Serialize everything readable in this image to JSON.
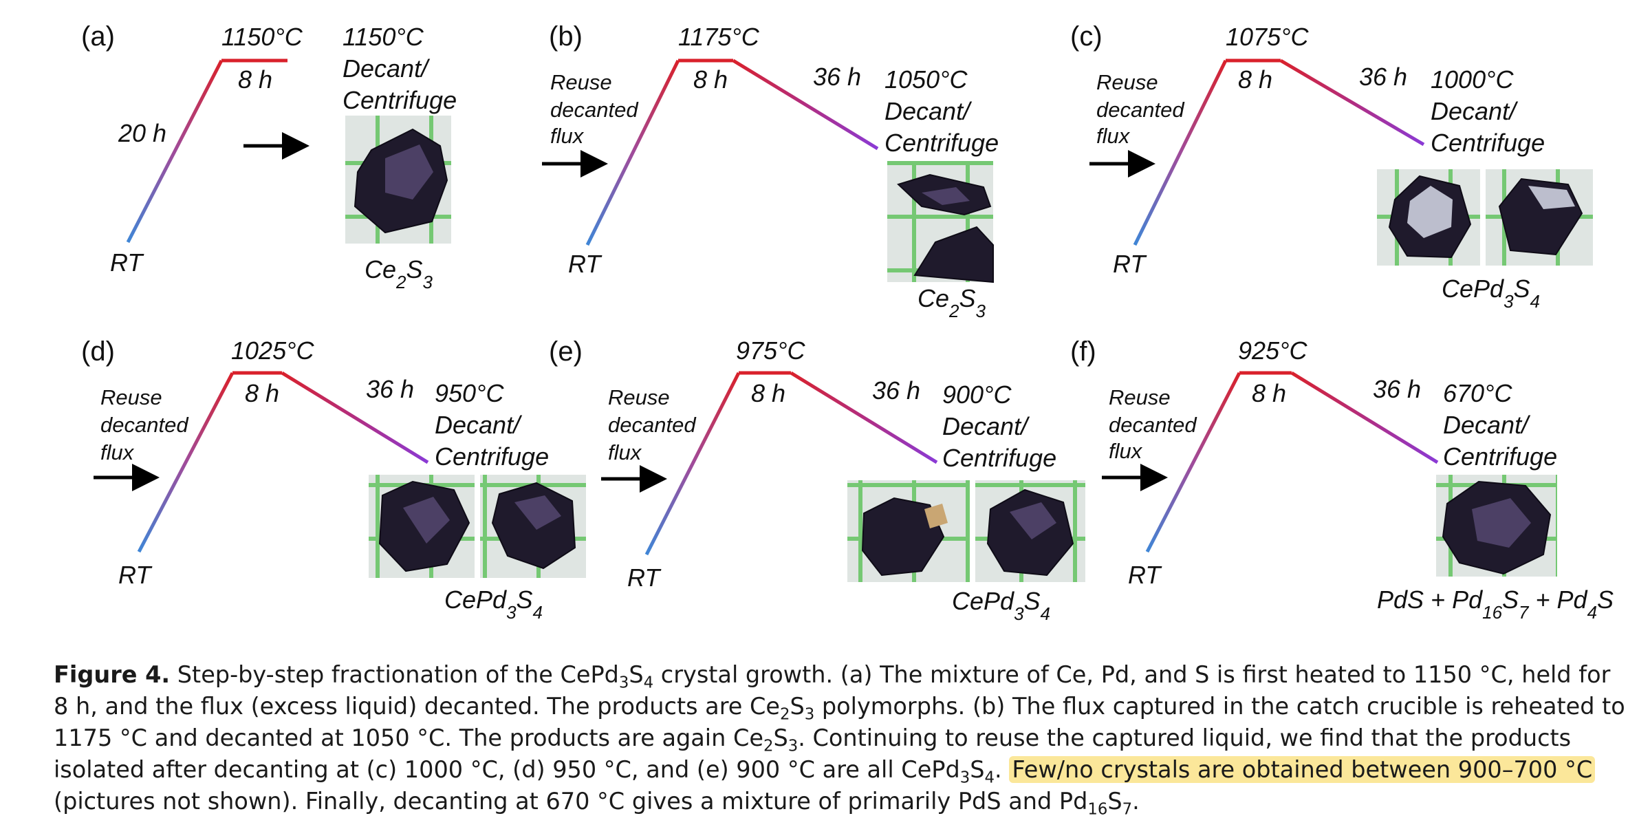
{
  "panels": [
    {
      "letter": "(a)",
      "rt": "RT",
      "ramp": "20 h",
      "peak": "1150°C",
      "hold": "8 h",
      "reuse": "",
      "cool": "",
      "decant_temp": "1150°C",
      "decant": "Decant/",
      "centrifuge": "Centrifuge",
      "product": "Ce2S3"
    },
    {
      "letter": "(b)",
      "rt": "RT",
      "ramp": "",
      "peak": "1175°C",
      "hold": "8 h",
      "reuse": [
        "Reuse",
        "decanted",
        "flux"
      ],
      "cool": "36 h",
      "decant_temp": "1050°C",
      "decant": "Decant/",
      "centrifuge": "Centrifuge",
      "product": "Ce2S3"
    },
    {
      "letter": "(c)",
      "rt": "RT",
      "ramp": "",
      "peak": "1075°C",
      "hold": "8 h",
      "reuse": [
        "Reuse",
        "decanted",
        "flux"
      ],
      "cool": "36 h",
      "decant_temp": "1000°C",
      "decant": "Decant/",
      "centrifuge": "Centrifuge",
      "product": "CePd3S4"
    },
    {
      "letter": "(d)",
      "rt": "RT",
      "ramp": "",
      "peak": "1025°C",
      "hold": "8 h",
      "reuse": [
        "Reuse",
        "decanted",
        "flux"
      ],
      "cool": "36 h",
      "decant_temp": "950°C",
      "decant": "Decant/",
      "centrifuge": "Centrifuge",
      "product": "CePd3S4"
    },
    {
      "letter": "(e)",
      "rt": "RT",
      "ramp": "",
      "peak": "975°C",
      "hold": "8 h",
      "reuse": [
        "Reuse",
        "decanted",
        "flux"
      ],
      "cool": "36 h",
      "decant_temp": "900°C",
      "decant": "Decant/",
      "centrifuge": "Centrifuge",
      "product": "CePd3S4"
    },
    {
      "letter": "(f)",
      "rt": "RT",
      "ramp": "",
      "peak": "925°C",
      "hold": "8 h",
      "reuse": [
        "Reuse",
        "decanted",
        "flux"
      ],
      "cool": "36 h",
      "decant_temp": "670°C",
      "decant": "Decant/",
      "centrifuge": "Centrifuge",
      "product": "PdS + Pd16S7 + Pd4S"
    }
  ],
  "colors": {
    "ramp_start": "#3f86d6",
    "ramp_end": "#d9212b",
    "hold": "#d9212b",
    "cool_end": "#8a3ad6",
    "highlight": "#fbe79a",
    "grid_green": "#63c35f"
  },
  "caption": {
    "label": "Figure 4.",
    "s1": " Step-by-step fractionation of the CePd",
    "s1b": "3",
    "s1c": "S",
    "s1d": "4",
    "s2": " crystal growth. (a) The mixture of Ce, Pd, and S is first heated to 1150 °C, held for 8 h, and the flux (excess liquid) decanted. The products are Ce",
    "s2b": "2",
    "s2c": "S",
    "s2d": "3",
    "s3": " polymorphs. (b) The flux captured in the catch crucible is reheated to 1175 °C and decanted at 1050 °C. The products are again Ce",
    "s3b": "2",
    "s3c": "S",
    "s3d": "3",
    "s4": ". Continuing to reuse the captured liquid, we find that the products isolated after decanting at (c) 1000 °C, (d) 950 °C, and (e) 900 °C are all CePd",
    "s4b": "3",
    "s4c": "S",
    "s4d": "4",
    "s4e": ". ",
    "highlight": "Few/no crystals are obtained between 900–700 °C",
    "s5": " (pictures not shown). Finally, decanting at 670 °C gives a mixture of primarily PdS and Pd",
    "s5b": "16",
    "s5c": "S",
    "s5d": "7",
    "s5e": "."
  }
}
